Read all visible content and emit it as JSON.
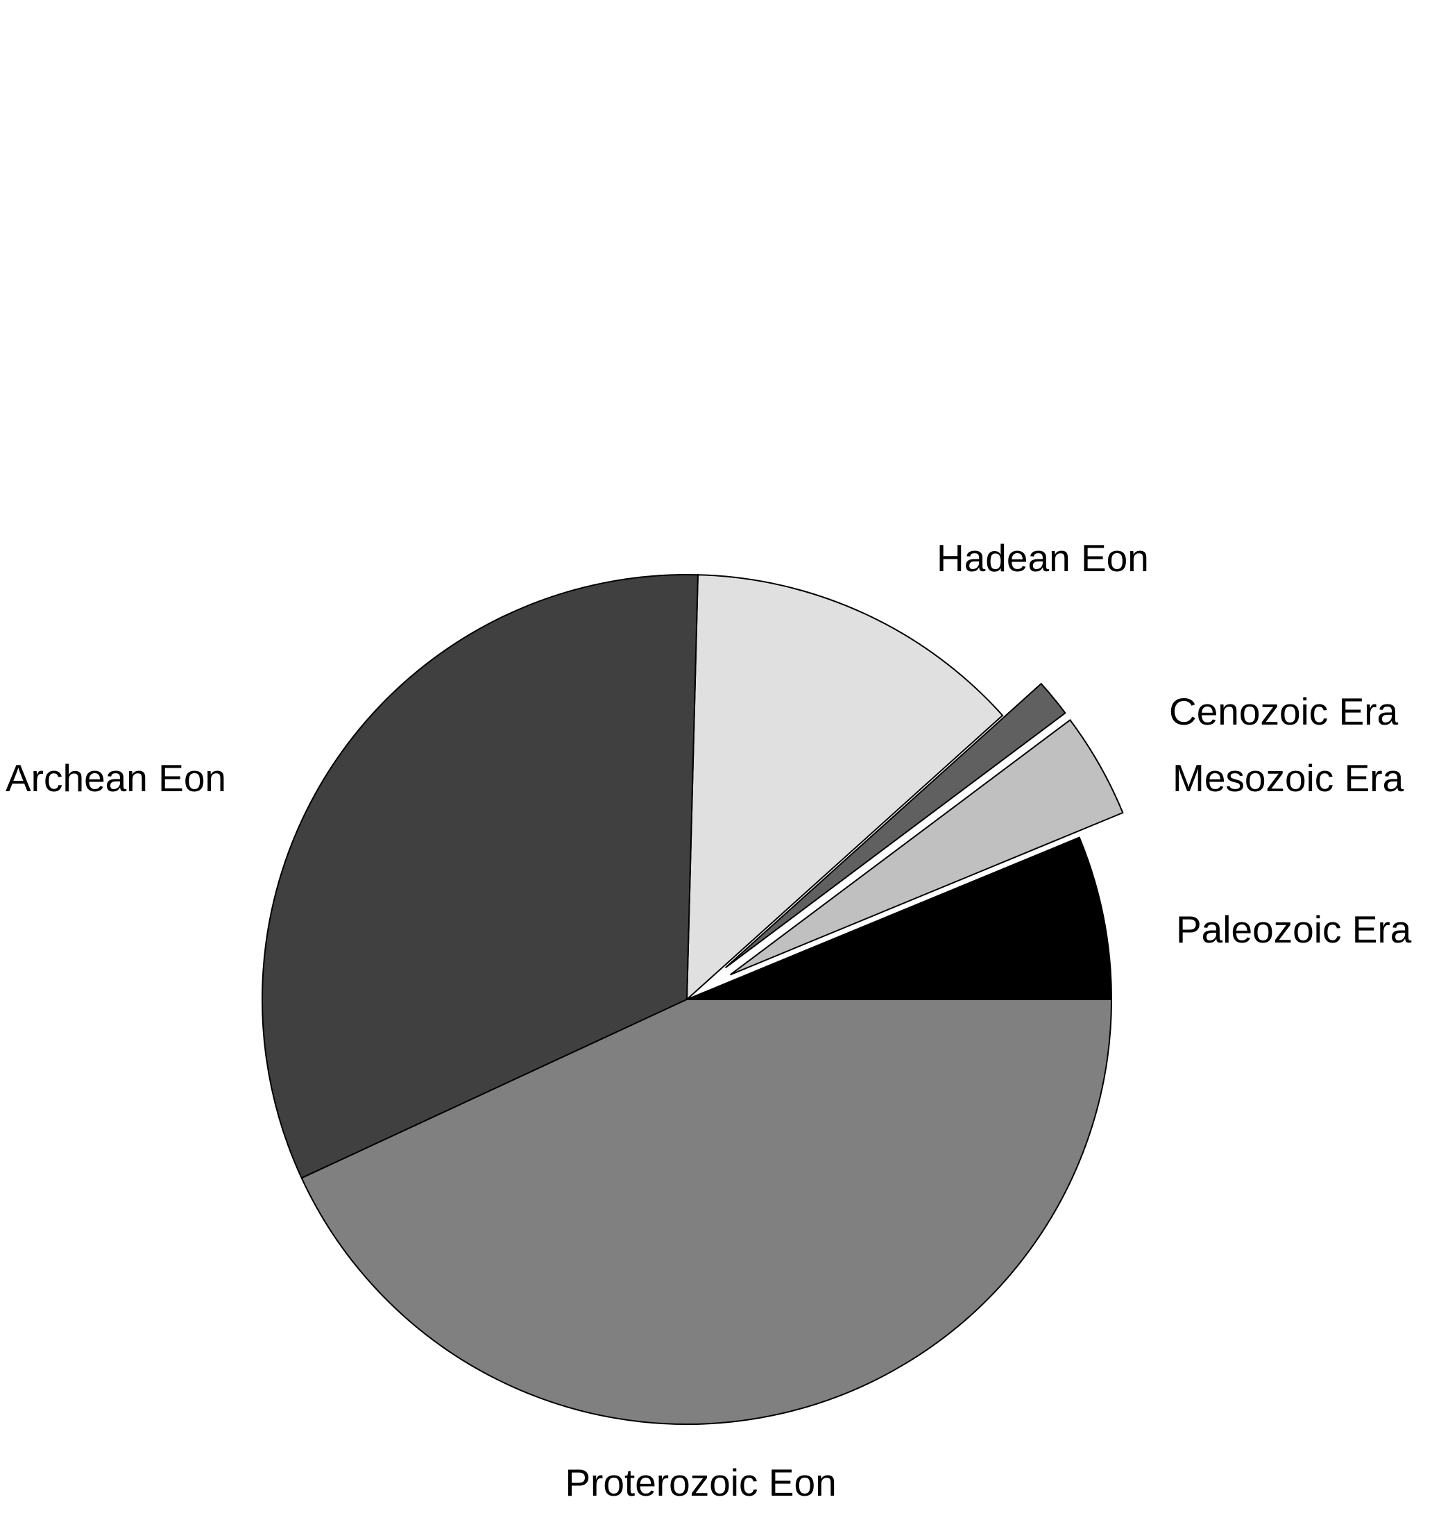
{
  "chart_data": {
    "type": "pie",
    "start_angle_deg": 0,
    "direction": "counterclockwise",
    "labels": [
      "Paleozoic Era",
      "Mesozoic Era",
      "Cenozoic Era",
      "Hadean Eon",
      "Archean Eon",
      "Proterozoic Eon"
    ],
    "values": [
      0.289,
      0.186,
      0.066,
      0.6,
      1.5,
      2.0
    ],
    "colors": [
      "#000000",
      "#c0c0c0",
      "#606060",
      "#e0e0e0",
      "#404040",
      "#808080"
    ],
    "exploded": [
      false,
      true,
      true,
      false,
      false,
      false
    ],
    "legend": "none"
  }
}
